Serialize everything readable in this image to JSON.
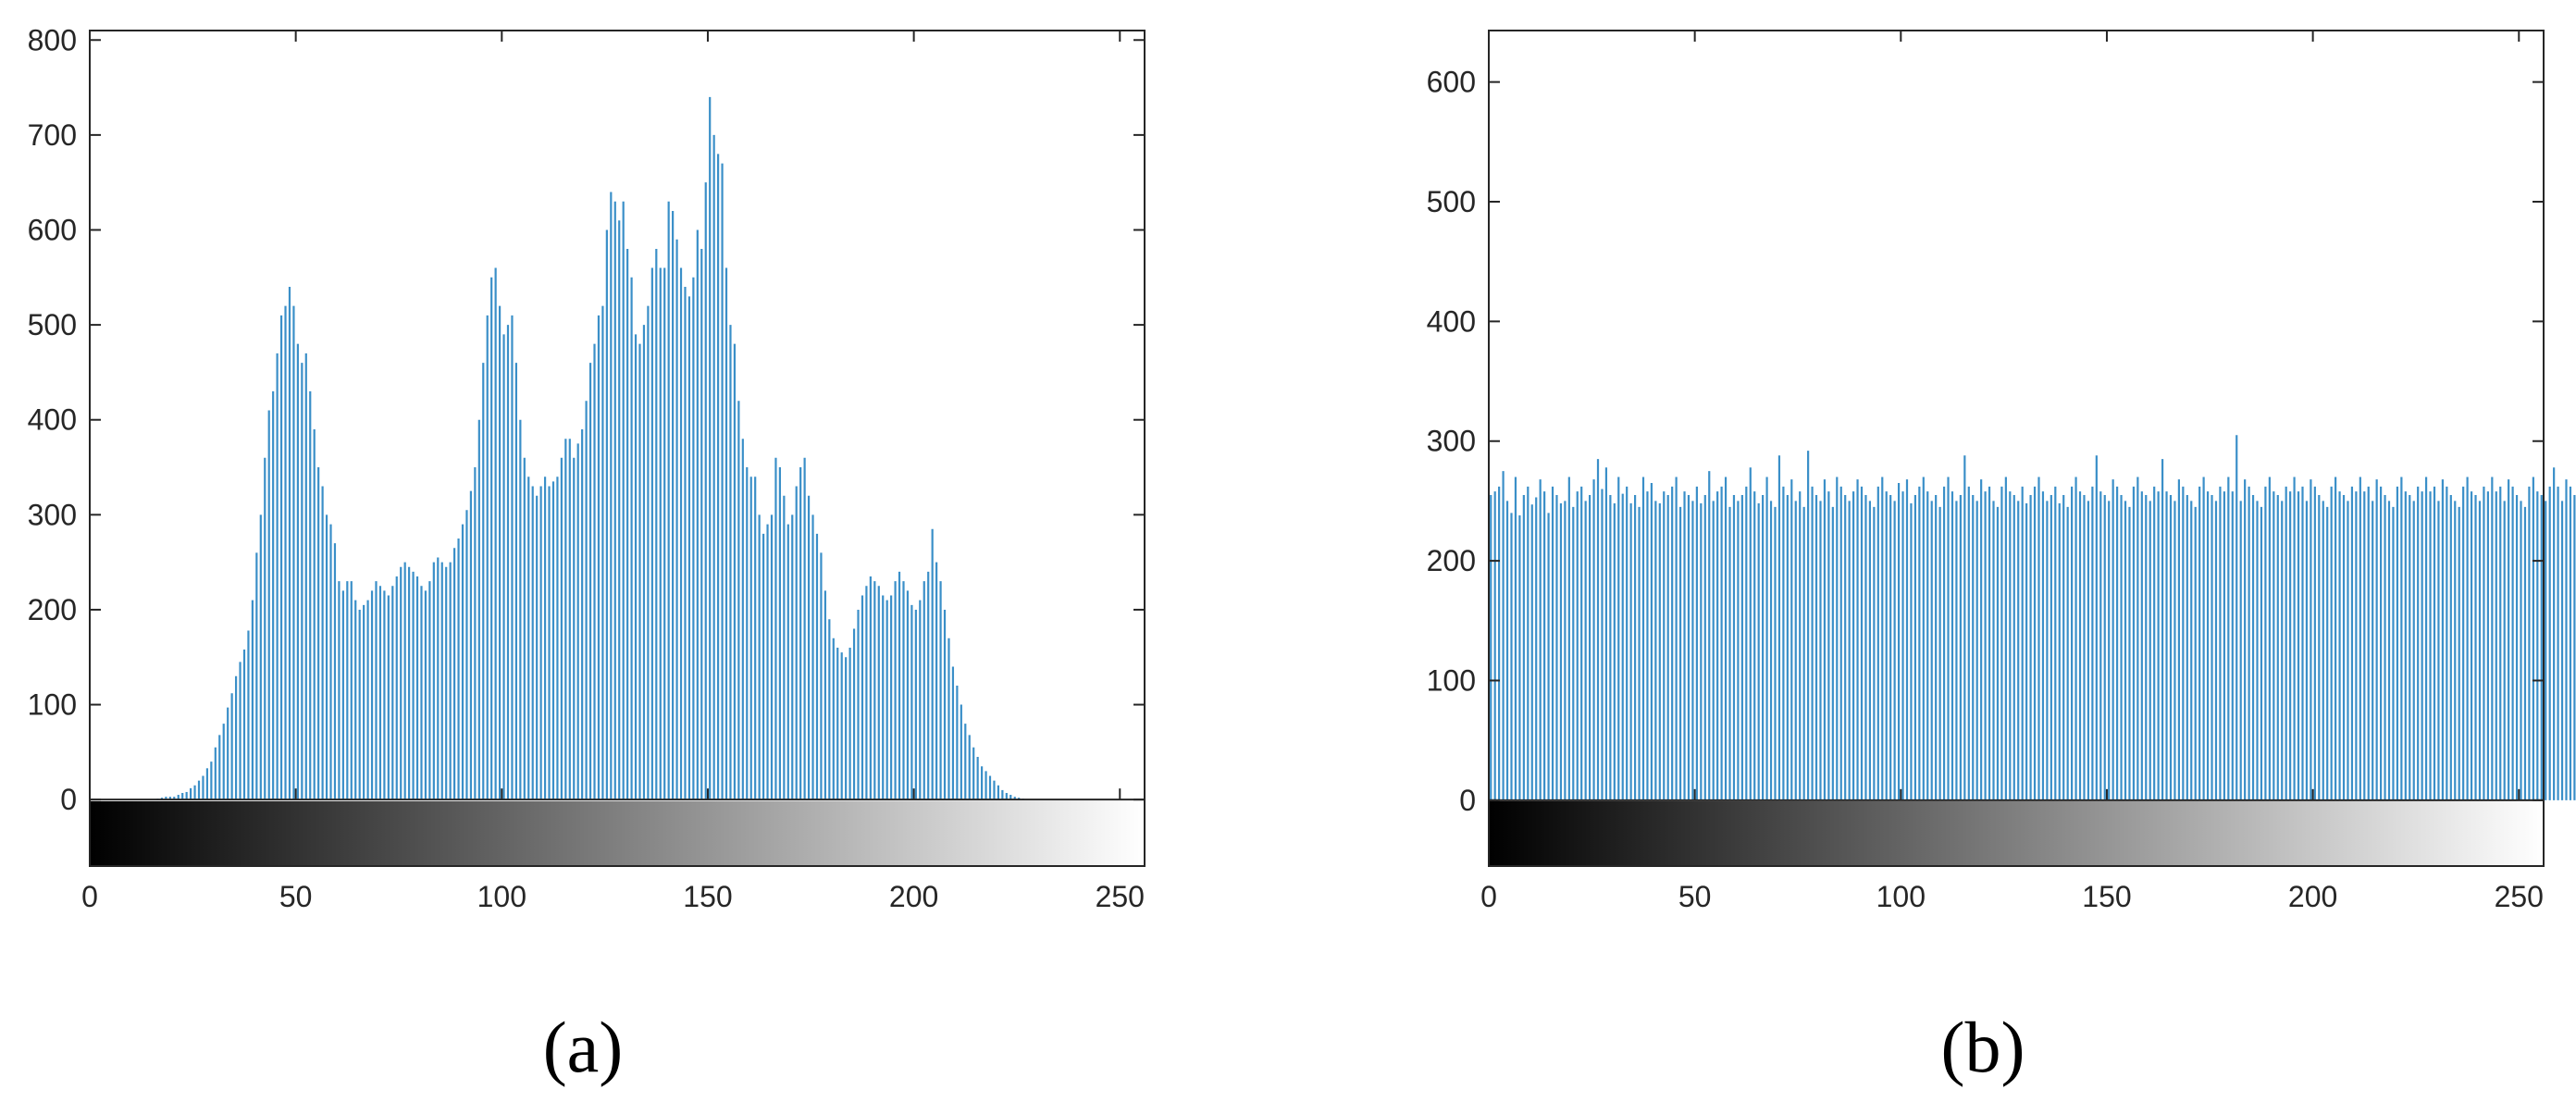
{
  "chart_data": [
    {
      "panel": "(a)",
      "type": "bar",
      "xlim": [
        0,
        256
      ],
      "ylim": [
        -70,
        810
      ],
      "xticks": [
        0,
        50,
        100,
        150,
        200,
        250
      ],
      "yticks": [
        0,
        100,
        200,
        300,
        400,
        500,
        600,
        700,
        800
      ],
      "colorbar": "grayscale 0-255",
      "x_start": 0,
      "values": [
        0,
        0,
        0,
        0,
        0,
        0,
        0,
        0,
        0,
        0,
        0,
        0,
        0,
        0,
        0,
        0,
        1,
        2,
        3,
        3,
        3,
        5,
        7,
        8,
        12,
        15,
        20,
        25,
        33,
        40,
        55,
        68,
        80,
        97,
        112,
        130,
        145,
        158,
        178,
        210,
        260,
        300,
        360,
        410,
        430,
        470,
        510,
        520,
        540,
        520,
        480,
        460,
        470,
        430,
        390,
        350,
        330,
        300,
        290,
        270,
        230,
        220,
        230,
        230,
        210,
        200,
        205,
        210,
        220,
        230,
        225,
        220,
        215,
        225,
        235,
        245,
        250,
        245,
        240,
        235,
        225,
        220,
        230,
        250,
        255,
        250,
        245,
        250,
        265,
        275,
        290,
        305,
        325,
        350,
        400,
        460,
        510,
        550,
        560,
        520,
        490,
        500,
        510,
        460,
        400,
        360,
        340,
        330,
        320,
        330,
        340,
        330,
        335,
        340,
        360,
        380,
        380,
        360,
        375,
        390,
        420,
        460,
        480,
        510,
        520,
        600,
        640,
        630,
        610,
        630,
        580,
        550,
        490,
        480,
        500,
        520,
        560,
        580,
        560,
        560,
        630,
        620,
        590,
        560,
        540,
        530,
        550,
        600,
        580,
        650,
        740,
        700,
        680,
        670,
        560,
        500,
        480,
        420,
        380,
        350,
        340,
        340,
        300,
        280,
        290,
        300,
        360,
        350,
        320,
        290,
        300,
        330,
        350,
        360,
        320,
        300,
        280,
        260,
        220,
        190,
        170,
        160,
        155,
        150,
        160,
        180,
        200,
        215,
        225,
        235,
        230,
        225,
        215,
        210,
        215,
        230,
        240,
        230,
        220,
        205,
        200,
        210,
        230,
        240,
        285,
        250,
        230,
        200,
        170,
        140,
        120,
        100,
        80,
        68,
        55,
        45,
        35,
        30,
        25,
        20,
        15,
        10,
        7,
        5,
        3,
        2,
        1,
        0,
        0,
        0,
        0,
        0,
        0,
        0,
        0,
        0,
        0,
        0,
        0,
        0,
        0,
        0,
        0,
        0,
        0,
        0,
        0,
        0,
        0,
        0
      ]
    },
    {
      "panel": "(b)",
      "type": "bar",
      "xlim": [
        0,
        256
      ],
      "ylim": [
        -55,
        643
      ],
      "xticks": [
        0,
        50,
        100,
        150,
        200,
        250
      ],
      "yticks": [
        0,
        100,
        200,
        300,
        400,
        500,
        600
      ],
      "colorbar": "grayscale 0-255",
      "x_start": 0,
      "values": [
        255,
        258,
        262,
        275,
        250,
        240,
        270,
        238,
        255,
        262,
        247,
        253,
        268,
        258,
        240,
        262,
        255,
        248,
        250,
        270,
        245,
        258,
        262,
        250,
        255,
        268,
        285,
        260,
        278,
        255,
        248,
        270,
        256,
        262,
        248,
        255,
        245,
        270,
        258,
        265,
        250,
        248,
        258,
        255,
        262,
        270,
        245,
        258,
        255,
        250,
        262,
        248,
        255,
        275,
        250,
        258,
        262,
        270,
        245,
        255,
        250,
        255,
        262,
        278,
        258,
        248,
        255,
        270,
        250,
        245,
        288,
        262,
        255,
        268,
        250,
        258,
        245,
        292,
        262,
        255,
        250,
        268,
        258,
        245,
        270,
        262,
        255,
        250,
        258,
        268,
        262,
        255,
        250,
        245,
        262,
        270,
        258,
        255,
        250,
        265,
        258,
        268,
        248,
        255,
        262,
        270,
        258,
        250,
        255,
        245,
        262,
        270,
        258,
        250,
        255,
        288,
        262,
        255,
        250,
        268,
        258,
        262,
        250,
        245,
        262,
        270,
        258,
        255,
        250,
        262,
        248,
        255,
        262,
        270,
        258,
        250,
        255,
        262,
        248,
        255,
        245,
        262,
        270,
        258,
        255,
        250,
        262,
        288,
        258,
        255,
        250,
        268,
        262,
        255,
        250,
        245,
        262,
        270,
        258,
        255,
        250,
        262,
        258,
        285,
        258,
        255,
        250,
        268,
        262,
        255,
        250,
        245,
        262,
        270,
        258,
        255,
        250,
        262,
        258,
        270,
        258,
        305,
        250,
        268,
        262,
        255,
        250,
        245,
        262,
        270,
        258,
        255,
        250,
        262,
        258,
        270,
        258,
        262,
        250,
        268,
        262,
        255,
        250,
        245,
        262,
        270,
        258,
        255,
        250,
        262,
        258,
        270,
        258,
        262,
        250,
        268,
        262,
        255,
        250,
        245,
        262,
        270,
        258,
        255,
        250,
        262,
        258,
        270,
        258,
        262,
        250,
        268,
        262,
        255,
        250,
        245,
        262,
        270,
        258,
        255,
        250,
        262,
        258,
        270,
        258,
        262,
        250,
        268,
        262,
        255,
        250,
        245,
        262,
        270,
        258,
        255,
        250,
        262,
        278,
        262,
        250,
        268,
        262,
        255,
        250,
        245,
        262,
        270,
        258,
        225
      ]
    }
  ],
  "panels": [
    {
      "label": "(a)",
      "ytick_labels": [
        "0",
        "100",
        "200",
        "300",
        "400",
        "500",
        "600",
        "700",
        "800"
      ],
      "xtick_labels": [
        "0",
        "50",
        "100",
        "150",
        "200",
        "250"
      ]
    },
    {
      "label": "(b)",
      "ytick_labels": [
        "0",
        "100",
        "200",
        "300",
        "400",
        "500",
        "600"
      ],
      "xtick_labels": [
        "0",
        "50",
        "100",
        "150",
        "200",
        "250"
      ]
    }
  ],
  "colors": {
    "bar": "#3a8fc8",
    "axis": "#262626"
  }
}
